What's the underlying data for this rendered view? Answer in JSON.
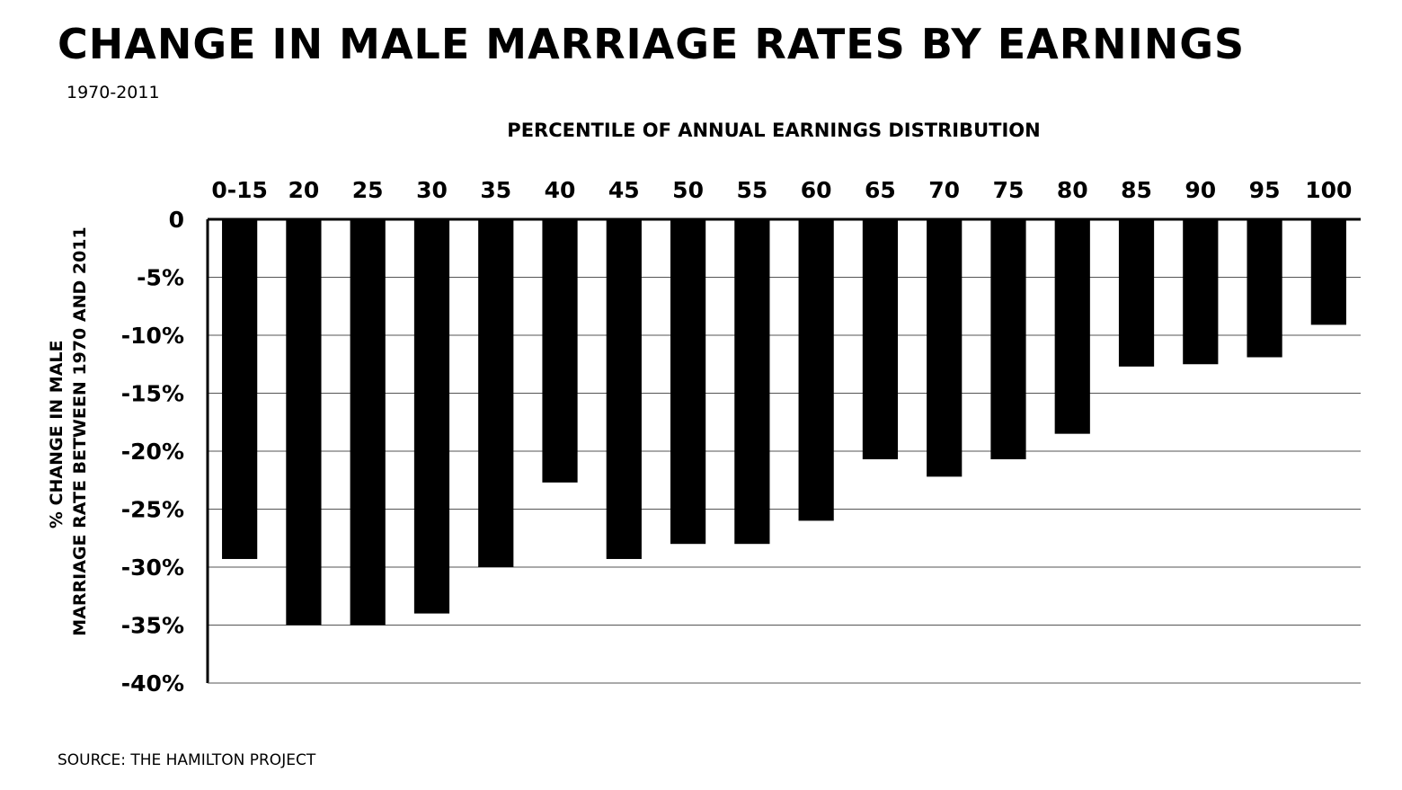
{
  "title": "CHANGE IN MALE MARRIAGE RATES BY EARNINGS",
  "subtitle": "1970-2011",
  "source": "SOURCE: THE HAMILTON PROJECT",
  "chart_data": {
    "type": "bar",
    "title": "CHANGE IN MALE MARRIAGE RATES BY EARNINGS",
    "subtitle": "1970-2011",
    "xlabel": "PERCENTILE OF ANNUAL EARNINGS DISTRIBUTION",
    "ylabel": "% CHANGE IN MALE MARRIAGE RATE BETWEEN 1970 AND 2011",
    "ylabel_lines": [
      "% CHANGE IN MALE",
      "MARRIAGE RATE BETWEEN 1970 AND 2011"
    ],
    "categories": [
      "0-15",
      "20",
      "25",
      "30",
      "35",
      "40",
      "45",
      "50",
      "55",
      "60",
      "65",
      "70",
      "75",
      "80",
      "85",
      "90",
      "95",
      "100"
    ],
    "values": [
      -29.3,
      -35,
      -35,
      -34,
      -30,
      -22.7,
      -29.3,
      -28,
      -28,
      -26,
      -20.7,
      -22.2,
      -20.7,
      -18.5,
      -12.7,
      -12.5,
      -11.9,
      -9.1
    ],
    "ylim": [
      -40,
      0
    ],
    "yticks": [
      0,
      -5,
      -10,
      -15,
      -20,
      -25,
      -30,
      -35,
      -40
    ],
    "ytick_labels": [
      "0",
      "-5%",
      "-10%",
      "-15%",
      "-20%",
      "-25%",
      "-30%",
      "-35%",
      "-40%"
    ],
    "x_axis_position": "top",
    "grid": true,
    "legend": false,
    "colors": {
      "bar": "#000000",
      "grid": "#555555",
      "axis": "#000000"
    }
  }
}
